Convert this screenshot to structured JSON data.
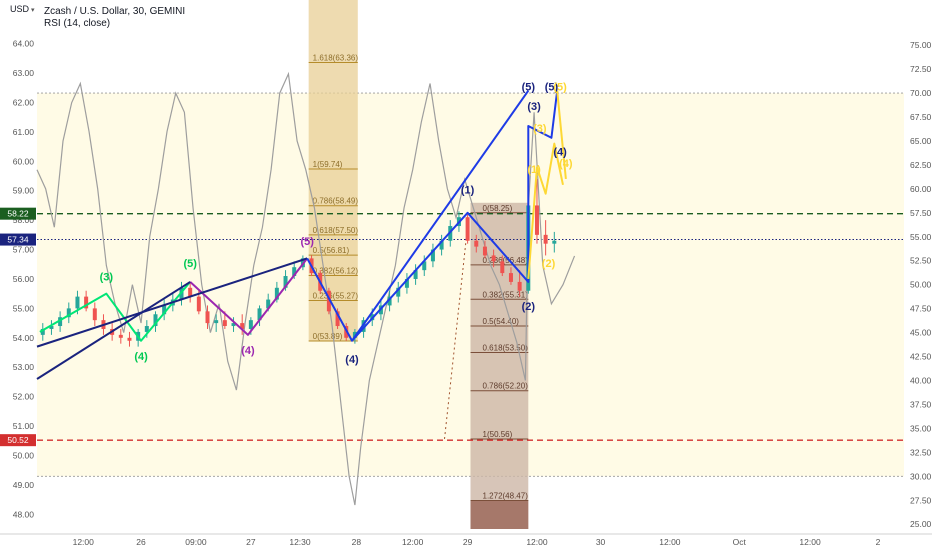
{
  "header": {
    "unit_badge": "USD",
    "title": "Zcash / U.S. Dollar, 30, GEMINI",
    "indicator": "RSI (14, close)"
  },
  "chart_data": {
    "type": "candlestick",
    "left_axis": {
      "ticks": [
        "64.00",
        "63.00",
        "62.00",
        "61.00",
        "60.00",
        "59.00",
        "58.00",
        "57.00",
        "56.00",
        "55.00",
        "54.00",
        "53.00",
        "52.00",
        "51.00",
        "50.00",
        "49.00",
        "48.00"
      ],
      "range": [
        47.5,
        64.6
      ]
    },
    "right_axis": {
      "ticks": [
        "75.00",
        "72.50",
        "70.00",
        "67.50",
        "65.00",
        "62.50",
        "60.00",
        "57.50",
        "55.00",
        "52.50",
        "50.00",
        "47.50",
        "45.00",
        "42.50",
        "40.00",
        "37.50",
        "35.00",
        "32.50",
        "30.00",
        "27.50",
        "25.00"
      ],
      "range": [
        24.5,
        77
      ]
    },
    "x_axis": {
      "ticks": [
        "12:00",
        "26",
        "09:00",
        "27",
        "12:30",
        "28",
        "12:00",
        "29",
        "12:00",
        "30",
        "12:00",
        "Oct",
        "12:00",
        "2"
      ],
      "units": [
        1.6,
        3.6,
        5.5,
        7.4,
        9.1,
        11.05,
        13.0,
        14.9,
        17.3,
        19.5,
        21.9,
        24.3,
        26.75,
        29.1
      ],
      "range": [
        0,
        30
      ]
    },
    "price_tags": [
      {
        "label": "58.22",
        "value": 58.22,
        "color": "#1b5e20",
        "style": "dashed"
      },
      {
        "label": "57.34",
        "value": 57.34,
        "color": "#1a237e",
        "style": "dotted"
      },
      {
        "label": "50.52",
        "value": 50.52,
        "color": "#d32f2f",
        "style": "dashed"
      }
    ],
    "rsi_levels": [
      70,
      30
    ],
    "colors": {
      "up": "#26a69a",
      "down": "#ef5350",
      "rsi": "#9e9e9e"
    },
    "candles": [
      {
        "t": 0.2,
        "o": 54.1,
        "h": 54.5,
        "l": 53.9,
        "c": 54.3
      },
      {
        "t": 0.5,
        "o": 54.3,
        "h": 54.6,
        "l": 54.1,
        "c": 54.4
      },
      {
        "t": 0.8,
        "o": 54.4,
        "h": 54.9,
        "l": 54.2,
        "c": 54.7
      },
      {
        "t": 1.1,
        "o": 54.7,
        "h": 55.2,
        "l": 54.5,
        "c": 55.0
      },
      {
        "t": 1.4,
        "o": 55.0,
        "h": 55.6,
        "l": 54.8,
        "c": 55.4
      },
      {
        "t": 1.7,
        "o": 55.4,
        "h": 55.6,
        "l": 54.9,
        "c": 55.0
      },
      {
        "t": 2.0,
        "o": 55.0,
        "h": 55.2,
        "l": 54.4,
        "c": 54.6
      },
      {
        "t": 2.3,
        "o": 54.6,
        "h": 54.8,
        "l": 54.1,
        "c": 54.3
      },
      {
        "t": 2.6,
        "o": 54.3,
        "h": 54.5,
        "l": 53.9,
        "c": 54.1
      },
      {
        "t": 2.9,
        "o": 54.1,
        "h": 54.3,
        "l": 53.8,
        "c": 54.0
      },
      {
        "t": 3.2,
        "o": 54.0,
        "h": 54.2,
        "l": 53.7,
        "c": 53.9
      },
      {
        "t": 3.5,
        "o": 53.9,
        "h": 54.3,
        "l": 53.7,
        "c": 54.2
      },
      {
        "t": 3.8,
        "o": 54.2,
        "h": 54.6,
        "l": 54.0,
        "c": 54.4
      },
      {
        "t": 4.1,
        "o": 54.4,
        "h": 54.9,
        "l": 54.2,
        "c": 54.8
      },
      {
        "t": 4.4,
        "o": 54.8,
        "h": 55.3,
        "l": 54.6,
        "c": 55.1
      },
      {
        "t": 4.7,
        "o": 55.1,
        "h": 55.5,
        "l": 54.9,
        "c": 55.3
      },
      {
        "t": 5.0,
        "o": 55.3,
        "h": 55.9,
        "l": 55.1,
        "c": 55.7
      },
      {
        "t": 5.3,
        "o": 55.7,
        "h": 55.9,
        "l": 55.2,
        "c": 55.4
      },
      {
        "t": 5.6,
        "o": 55.4,
        "h": 55.6,
        "l": 54.8,
        "c": 54.9
      },
      {
        "t": 5.9,
        "o": 54.9,
        "h": 55.1,
        "l": 54.3,
        "c": 54.5
      },
      {
        "t": 6.2,
        "o": 54.5,
        "h": 54.8,
        "l": 54.2,
        "c": 54.6
      },
      {
        "t": 6.5,
        "o": 54.6,
        "h": 54.9,
        "l": 54.3,
        "c": 54.4
      },
      {
        "t": 6.8,
        "o": 54.4,
        "h": 54.7,
        "l": 54.2,
        "c": 54.5
      },
      {
        "t": 7.1,
        "o": 54.5,
        "h": 54.8,
        "l": 54.1,
        "c": 54.3
      },
      {
        "t": 7.4,
        "o": 54.3,
        "h": 54.7,
        "l": 54.1,
        "c": 54.6
      },
      {
        "t": 7.7,
        "o": 54.6,
        "h": 55.1,
        "l": 54.4,
        "c": 55.0
      },
      {
        "t": 8.0,
        "o": 55.0,
        "h": 55.5,
        "l": 54.9,
        "c": 55.3
      },
      {
        "t": 8.3,
        "o": 55.3,
        "h": 55.9,
        "l": 55.2,
        "c": 55.7
      },
      {
        "t": 8.6,
        "o": 55.7,
        "h": 56.3,
        "l": 55.6,
        "c": 56.1
      },
      {
        "t": 8.9,
        "o": 56.1,
        "h": 56.6,
        "l": 56.0,
        "c": 56.4
      },
      {
        "t": 9.2,
        "o": 56.4,
        "h": 56.8,
        "l": 56.3,
        "c": 56.7
      },
      {
        "t": 9.5,
        "o": 56.7,
        "h": 56.8,
        "l": 56.1,
        "c": 56.2
      },
      {
        "t": 9.8,
        "o": 56.2,
        "h": 56.3,
        "l": 55.5,
        "c": 55.6
      },
      {
        "t": 10.1,
        "o": 55.6,
        "h": 55.7,
        "l": 54.8,
        "c": 54.9
      },
      {
        "t": 10.4,
        "o": 54.9,
        "h": 55.0,
        "l": 54.3,
        "c": 54.4
      },
      {
        "t": 10.7,
        "o": 54.4,
        "h": 54.5,
        "l": 53.9,
        "c": 54.0
      },
      {
        "t": 11.0,
        "o": 54.0,
        "h": 54.3,
        "l": 53.8,
        "c": 54.2
      },
      {
        "t": 11.3,
        "o": 54.2,
        "h": 54.7,
        "l": 54.0,
        "c": 54.6
      },
      {
        "t": 11.6,
        "o": 54.6,
        "h": 55.0,
        "l": 54.4,
        "c": 54.8
      },
      {
        "t": 11.9,
        "o": 54.8,
        "h": 55.3,
        "l": 54.6,
        "c": 55.1
      },
      {
        "t": 12.2,
        "o": 55.1,
        "h": 55.6,
        "l": 54.9,
        "c": 55.4
      },
      {
        "t": 12.5,
        "o": 55.4,
        "h": 55.9,
        "l": 55.2,
        "c": 55.7
      },
      {
        "t": 12.8,
        "o": 55.7,
        "h": 56.2,
        "l": 55.5,
        "c": 56.0
      },
      {
        "t": 13.1,
        "o": 56.0,
        "h": 56.5,
        "l": 55.8,
        "c": 56.3
      },
      {
        "t": 13.4,
        "o": 56.3,
        "h": 56.8,
        "l": 56.1,
        "c": 56.6
      },
      {
        "t": 13.7,
        "o": 56.6,
        "h": 57.2,
        "l": 56.4,
        "c": 57.0
      },
      {
        "t": 14.0,
        "o": 57.0,
        "h": 57.5,
        "l": 56.8,
        "c": 57.3
      },
      {
        "t": 14.3,
        "o": 57.3,
        "h": 58.0,
        "l": 57.1,
        "c": 57.8
      },
      {
        "t": 14.6,
        "o": 57.8,
        "h": 58.3,
        "l": 57.6,
        "c": 58.1
      },
      {
        "t": 14.9,
        "o": 58.1,
        "h": 58.2,
        "l": 57.2,
        "c": 57.3
      },
      {
        "t": 15.2,
        "o": 57.3,
        "h": 57.5,
        "l": 56.9,
        "c": 57.1
      },
      {
        "t": 15.5,
        "o": 57.1,
        "h": 57.3,
        "l": 56.7,
        "c": 56.8
      },
      {
        "t": 15.8,
        "o": 56.8,
        "h": 57.0,
        "l": 56.4,
        "c": 56.6
      },
      {
        "t": 16.1,
        "o": 56.6,
        "h": 56.8,
        "l": 56.1,
        "c": 56.2
      },
      {
        "t": 16.4,
        "o": 56.2,
        "h": 56.4,
        "l": 55.8,
        "c": 55.9
      },
      {
        "t": 16.7,
        "o": 55.9,
        "h": 56.3,
        "l": 55.4,
        "c": 55.6
      },
      {
        "t": 17.0,
        "o": 55.6,
        "h": 58.9,
        "l": 55.5,
        "c": 58.5
      },
      {
        "t": 17.3,
        "o": 58.5,
        "h": 59.4,
        "l": 57.2,
        "c": 57.5
      },
      {
        "t": 17.6,
        "o": 57.5,
        "h": 58.0,
        "l": 56.8,
        "c": 57.2
      },
      {
        "t": 17.9,
        "o": 57.2,
        "h": 57.6,
        "l": 56.9,
        "c": 57.3
      }
    ],
    "rsi": [
      [
        0.0,
        62
      ],
      [
        0.3,
        60
      ],
      [
        0.6,
        56
      ],
      [
        0.9,
        65
      ],
      [
        1.2,
        69
      ],
      [
        1.5,
        71
      ],
      [
        1.8,
        66
      ],
      [
        2.1,
        60
      ],
      [
        2.4,
        52
      ],
      [
        2.7,
        48
      ],
      [
        3.0,
        45
      ],
      [
        3.3,
        50
      ],
      [
        3.6,
        46
      ],
      [
        3.9,
        55
      ],
      [
        4.2,
        60
      ],
      [
        4.5,
        66
      ],
      [
        4.8,
        70
      ],
      [
        5.1,
        68
      ],
      [
        5.4,
        58
      ],
      [
        5.7,
        50
      ],
      [
        6.0,
        45
      ],
      [
        6.3,
        48
      ],
      [
        6.6,
        42
      ],
      [
        6.9,
        39
      ],
      [
        7.2,
        46
      ],
      [
        7.5,
        52
      ],
      [
        7.8,
        56
      ],
      [
        8.1,
        62
      ],
      [
        8.4,
        70
      ],
      [
        8.7,
        72
      ],
      [
        9.0,
        65
      ],
      [
        9.3,
        62
      ],
      [
        9.6,
        58
      ],
      [
        9.9,
        52
      ],
      [
        10.2,
        46
      ],
      [
        10.5,
        38
      ],
      [
        10.8,
        30
      ],
      [
        11.0,
        27
      ],
      [
        11.2,
        33
      ],
      [
        11.5,
        40
      ],
      [
        11.8,
        44
      ],
      [
        12.1,
        48
      ],
      [
        12.4,
        52
      ],
      [
        12.7,
        58
      ],
      [
        13.0,
        62
      ],
      [
        13.3,
        67
      ],
      [
        13.6,
        71
      ],
      [
        13.9,
        65
      ],
      [
        14.2,
        60
      ],
      [
        14.5,
        57
      ],
      [
        14.8,
        61
      ],
      [
        15.1,
        58
      ],
      [
        15.4,
        55
      ],
      [
        15.7,
        52
      ],
      [
        16.0,
        50
      ],
      [
        16.3,
        47
      ],
      [
        16.6,
        44
      ],
      [
        16.9,
        40
      ],
      [
        17.0,
        58
      ],
      [
        17.2,
        68
      ],
      [
        17.5,
        52
      ],
      [
        17.8,
        48
      ],
      [
        18.2,
        50
      ],
      [
        18.6,
        53
      ]
    ],
    "fib_zone_1": {
      "levels": [
        {
          "label": "1.618(63.36)",
          "value": 63.36
        },
        {
          "label": "1(59.74)",
          "value": 59.74
        },
        {
          "label": "0.786(58.49)",
          "value": 58.49
        },
        {
          "label": "0.618(57.50)",
          "value": 57.5
        },
        {
          "label": "0.5(56.81)",
          "value": 56.81
        },
        {
          "label": "0.382(56.12)",
          "value": 56.12
        },
        {
          "label": "0.236(55.27)",
          "value": 55.27
        },
        {
          "label": "0(53.89)",
          "value": 53.89
        }
      ],
      "x_range": [
        9.4,
        11.1
      ]
    },
    "fib_zone_2": {
      "levels": [
        {
          "label": "0(58.25)",
          "value": 58.25
        },
        {
          "label": "0.236(56.48)",
          "value": 56.48
        },
        {
          "label": "0.382(55.31)",
          "value": 55.31
        },
        {
          "label": "0.5(54.40)",
          "value": 54.4
        },
        {
          "label": "0.618(53.50)",
          "value": 53.5
        },
        {
          "label": "0.786(52.20)",
          "value": 52.2
        },
        {
          "label": "1(50.56)",
          "value": 50.56
        },
        {
          "label": "1.272(48.47)",
          "value": 48.47
        }
      ],
      "x_range": [
        15.0,
        17.0
      ]
    },
    "wave_labels": [
      {
        "text": "(3)",
        "t": 2.4,
        "v": 55.95,
        "color": "#00c853"
      },
      {
        "text": "(4)",
        "t": 3.6,
        "v": 53.25,
        "color": "#00c853"
      },
      {
        "text": "(5)",
        "t": 5.3,
        "v": 56.4,
        "color": "#00c853"
      },
      {
        "text": "(4)",
        "t": 7.3,
        "v": 53.45,
        "color": "#9c27b0"
      },
      {
        "text": "(5)",
        "t": 9.35,
        "v": 57.15,
        "color": "#9c27b0"
      },
      {
        "text": "(4)",
        "t": 10.9,
        "v": 53.15,
        "color": "#1a237e"
      },
      {
        "text": "(1)",
        "t": 14.9,
        "v": 58.9,
        "color": "#1a237e"
      },
      {
        "text": "(2)",
        "t": 17.0,
        "v": 54.95,
        "color": "#1a237e"
      },
      {
        "text": "(3)",
        "t": 17.2,
        "v": 61.75,
        "color": "#1a237e"
      },
      {
        "text": "(5)",
        "t": 17.0,
        "v": 62.4,
        "color": "#1a237e"
      },
      {
        "text": "(5)",
        "t": 17.8,
        "v": 62.4,
        "color": "#1a237e"
      },
      {
        "text": "(4)",
        "t": 18.1,
        "v": 60.2,
        "color": "#1a237e"
      },
      {
        "text": "(5)",
        "t": 18.1,
        "v": 62.4,
        "color": "#fdd835"
      },
      {
        "text": "(3)",
        "t": 17.4,
        "v": 61.0,
        "color": "#fdd835"
      },
      {
        "text": "(4)",
        "t": 18.3,
        "v": 59.8,
        "color": "#fdd835"
      },
      {
        "text": "(1)",
        "t": 17.2,
        "v": 59.6,
        "color": "#fdd835"
      },
      {
        "text": "(2)",
        "t": 17.7,
        "v": 56.4,
        "color": "#fdd835"
      }
    ],
    "wave_lines": [
      {
        "color": "#00e676",
        "points": [
          [
            0.1,
            54.2
          ],
          [
            2.4,
            55.5
          ],
          [
            3.6,
            53.9
          ],
          [
            5.3,
            55.9
          ]
        ]
      },
      {
        "color": "#9c27b0",
        "points": [
          [
            5.3,
            55.9
          ],
          [
            7.3,
            54.1
          ],
          [
            9.35,
            56.7
          ]
        ]
      },
      {
        "color": "#1a237e",
        "points": [
          [
            0,
            53.7
          ],
          [
            9.35,
            56.7
          ]
        ]
      },
      {
        "color": "#1a237e",
        "points": [
          [
            0,
            52.6
          ],
          [
            5.3,
            55.9
          ]
        ]
      },
      {
        "color": "#1e3be6",
        "points": [
          [
            9.35,
            56.7
          ],
          [
            10.9,
            53.9
          ],
          [
            14.9,
            58.25
          ],
          [
            17.0,
            55.9
          ],
          [
            17.0,
            61.2
          ],
          [
            17.8,
            60.8
          ],
          [
            18.0,
            62.4
          ]
        ]
      },
      {
        "color": "#1e3be6",
        "points": [
          [
            10.9,
            53.9
          ],
          [
            17.0,
            62.4
          ]
        ]
      },
      {
        "color": "#fdd835",
        "points": [
          [
            17.0,
            56.0
          ],
          [
            17.3,
            59.8
          ],
          [
            17.6,
            58.9
          ],
          [
            17.9,
            60.6
          ],
          [
            18.2,
            59.2
          ]
        ]
      },
      {
        "color": "#fdd835",
        "points": [
          [
            18.0,
            62.4
          ],
          [
            18.3,
            59.4
          ]
        ]
      }
    ]
  }
}
